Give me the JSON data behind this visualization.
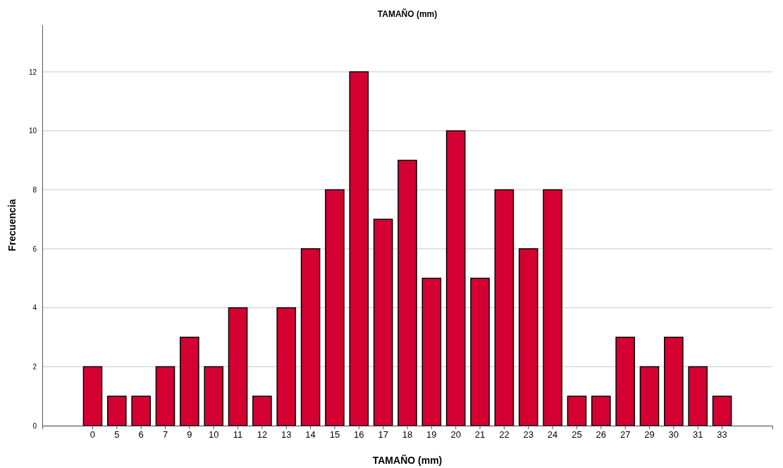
{
  "chart_data": {
    "type": "bar",
    "title": "TAMAÑO (mm)",
    "xlabel": "TAMAÑO (mm)",
    "ylabel": "Frecuencia",
    "categories": [
      "0",
      "5",
      "6",
      "7",
      "9",
      "10",
      "11",
      "12",
      "13",
      "14",
      "15",
      "16",
      "17",
      "18",
      "19",
      "20",
      "21",
      "22",
      "23",
      "24",
      "25",
      "26",
      "27",
      "29",
      "30",
      "31",
      "33"
    ],
    "values": [
      2,
      1,
      1,
      2,
      3,
      2,
      4,
      1,
      4,
      6,
      8,
      12,
      7,
      9,
      5,
      10,
      5,
      8,
      6,
      8,
      1,
      1,
      3,
      2,
      3,
      2,
      1
    ],
    "color": "#d50032",
    "ylim": [
      0,
      13.6
    ],
    "yticks": [
      0,
      2,
      4,
      6,
      8,
      10,
      12
    ],
    "grid": "y"
  }
}
